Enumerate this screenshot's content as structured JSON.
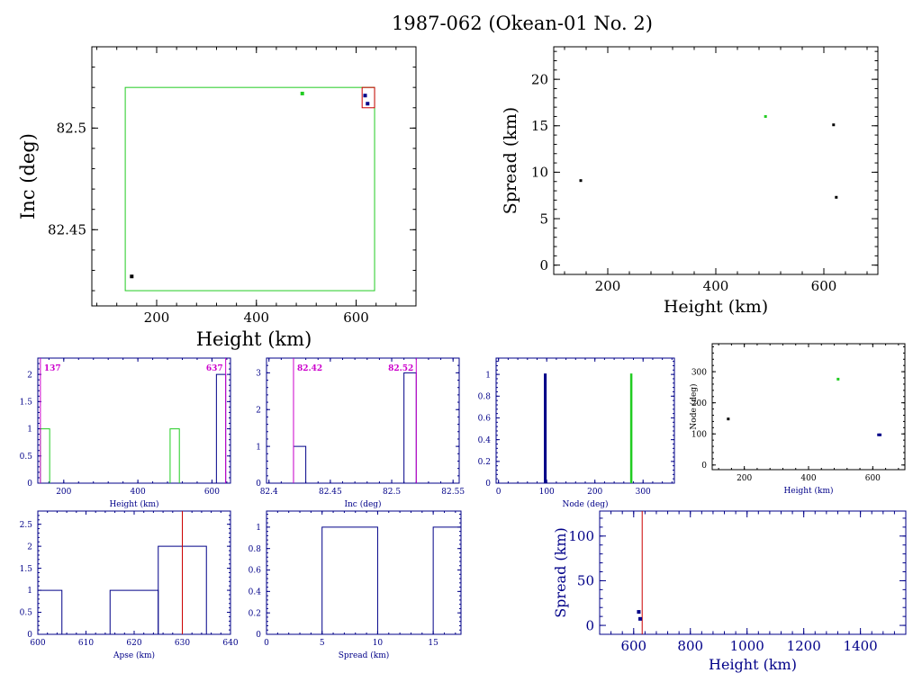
{
  "title": "1987-062 (Okean-01 No. 2)",
  "colors": {
    "black": "#000000",
    "green": "#22cc22",
    "blue": "#000088",
    "red": "#cc0000",
    "magenta": "#cc00cc"
  },
  "chart_data": [
    {
      "id": "inc-vs-height",
      "type": "scatter",
      "xlabel": "Height (km)",
      "ylabel": "Inc (deg)",
      "xlim": [
        70,
        720
      ],
      "ylim": [
        82.4125,
        82.54
      ],
      "xticks": [
        200,
        400,
        600
      ],
      "yticks": [
        82.45,
        82.5
      ],
      "yticks_labels": [
        "82.45",
        "82.5"
      ],
      "points": [
        {
          "x": 150,
          "y": 82.427,
          "color": "black"
        },
        {
          "x": 492,
          "y": 82.517,
          "color": "green"
        },
        {
          "x": 618,
          "y": 82.516,
          "color": "blue"
        },
        {
          "x": 623,
          "y": 82.512,
          "color": "blue"
        }
      ],
      "boxes": [
        {
          "x0": 137,
          "x1": 637,
          "y0": 82.42,
          "y1": 82.52,
          "color": "green"
        },
        {
          "x0": 612,
          "x1": 637,
          "y0": 82.51,
          "y1": 82.52,
          "color": "red"
        }
      ]
    },
    {
      "id": "spread-vs-height",
      "type": "scatter",
      "xlabel": "Height (km)",
      "ylabel": "Spread (km)",
      "xlim": [
        100,
        700
      ],
      "ylim": [
        -1,
        23.5
      ],
      "xticks": [
        200,
        400,
        600
      ],
      "yticks": [
        0,
        5,
        10,
        15,
        20
      ],
      "points": [
        {
          "x": 150,
          "y": 9.1,
          "color": "black"
        },
        {
          "x": 492,
          "y": 16.0,
          "color": "green"
        },
        {
          "x": 618,
          "y": 15.1,
          "color": "black"
        },
        {
          "x": 623,
          "y": 7.3,
          "color": "black"
        }
      ]
    },
    {
      "id": "hist-height",
      "type": "bar",
      "xlabel": "Height (km)",
      "xlim": [
        130,
        650
      ],
      "ylim": [
        0,
        2.3
      ],
      "xticks": [
        200,
        400,
        600
      ],
      "yticks": [
        0,
        0.5,
        1,
        1.5,
        2
      ],
      "yticks_labels": [
        "0",
        "0.5",
        "1",
        "1.5",
        "2"
      ],
      "series": [
        {
          "color": "green",
          "bins": [
            [
              137,
              162,
              1
            ],
            [
              487,
              512,
              1
            ]
          ]
        },
        {
          "color": "blue",
          "bins": [
            [
              612,
              637,
              2
            ]
          ]
        }
      ],
      "vlines": [
        {
          "x": 137,
          "label": "137",
          "color": "magenta"
        },
        {
          "x": 637,
          "label": "637",
          "color": "magenta"
        }
      ]
    },
    {
      "id": "hist-inc",
      "type": "bar",
      "xlabel": "Inc (deg)",
      "xlim": [
        82.398,
        82.555
      ],
      "ylim": [
        0,
        3.4
      ],
      "xticks": [
        82.4,
        82.45,
        82.5,
        82.55
      ],
      "yticks": [
        0,
        1,
        2,
        3
      ],
      "xticks_labels": [
        "82.4",
        "82.45",
        "82.5",
        "82.55"
      ],
      "series": [
        {
          "color": "blue",
          "bins": [
            [
              82.42,
              82.43,
              1
            ],
            [
              82.51,
              82.52,
              3
            ]
          ]
        }
      ],
      "vlines": [
        {
          "x": 82.42,
          "label": "82.42",
          "color": "magenta"
        },
        {
          "x": 82.52,
          "label": "82.52",
          "color": "magenta"
        }
      ]
    },
    {
      "id": "hist-node",
      "type": "bar",
      "xlabel": "Node (deg)",
      "xlim": [
        -5,
        365
      ],
      "ylim": [
        0,
        1.15
      ],
      "xticks": [
        0,
        100,
        200,
        300
      ],
      "yticks": [
        0,
        0.2,
        0.4,
        0.6,
        0.8,
        1
      ],
      "yticks_labels": [
        "0",
        "0.2",
        "0.4",
        "0.6",
        "0.8",
        "1"
      ],
      "series": [
        {
          "color": "blue",
          "bins": [
            [
              96,
              98,
              1
            ]
          ]
        },
        {
          "color": "green",
          "bins": [
            [
              275,
              276,
              1
            ]
          ]
        }
      ]
    },
    {
      "id": "node-vs-height",
      "type": "scatter",
      "xlabel": "Height (km)",
      "ylabel": "Node (deg)",
      "xlim": [
        100,
        700
      ],
      "ylim": [
        -15,
        390
      ],
      "xticks": [
        200,
        400,
        600
      ],
      "yticks": [
        0,
        100,
        200,
        300
      ],
      "points": [
        {
          "x": 150,
          "y": 148,
          "color": "black"
        },
        {
          "x": 492,
          "y": 276,
          "color": "green"
        },
        {
          "x": 618,
          "y": 97,
          "color": "blue"
        },
        {
          "x": 623,
          "y": 97,
          "color": "blue"
        }
      ]
    },
    {
      "id": "hist-apse",
      "type": "bar",
      "xlabel": "Apse (km)",
      "xlim": [
        600,
        640
      ],
      "ylim": [
        0,
        2.8
      ],
      "xticks": [
        600,
        610,
        620,
        630,
        640
      ],
      "yticks": [
        0,
        0.5,
        1,
        1.5,
        2,
        2.5
      ],
      "yticks_labels": [
        "0",
        "0.5",
        "1",
        "1.5",
        "2",
        "2.5"
      ],
      "series": [
        {
          "color": "blue",
          "bins": [
            [
              600,
              605,
              1
            ],
            [
              615,
              625,
              1
            ],
            [
              625,
              635,
              2
            ]
          ]
        }
      ],
      "vlines": [
        {
          "x": 630,
          "label": "",
          "color": "red"
        }
      ]
    },
    {
      "id": "hist-spread",
      "type": "bar",
      "xlabel": "Spread (km)",
      "xlim": [
        0,
        17.5
      ],
      "ylim": [
        0,
        1.15
      ],
      "xticks": [
        0,
        5,
        10,
        15
      ],
      "yticks": [
        0,
        0.2,
        0.4,
        0.6,
        0.8,
        1
      ],
      "yticks_labels": [
        "0",
        "0.2",
        "0.4",
        "0.6",
        "0.8",
        "1"
      ],
      "series": [
        {
          "color": "blue",
          "bins": [
            [
              5,
              10,
              1
            ],
            [
              15,
              20,
              1
            ]
          ]
        }
      ]
    },
    {
      "id": "spread-vs-height-wide",
      "type": "scatter",
      "xlabel": "Height (km)",
      "ylabel": "Spread (km)",
      "xlim": [
        480,
        1560
      ],
      "ylim": [
        -10,
        128
      ],
      "xticks": [
        600,
        800,
        1000,
        1200,
        1400
      ],
      "yticks": [
        0,
        50,
        100
      ],
      "points": [
        {
          "x": 618,
          "y": 15.1,
          "color": "blue"
        },
        {
          "x": 623,
          "y": 7.3,
          "color": "blue"
        }
      ],
      "vlines": [
        {
          "x": 630,
          "label": "",
          "color": "red"
        }
      ]
    }
  ]
}
